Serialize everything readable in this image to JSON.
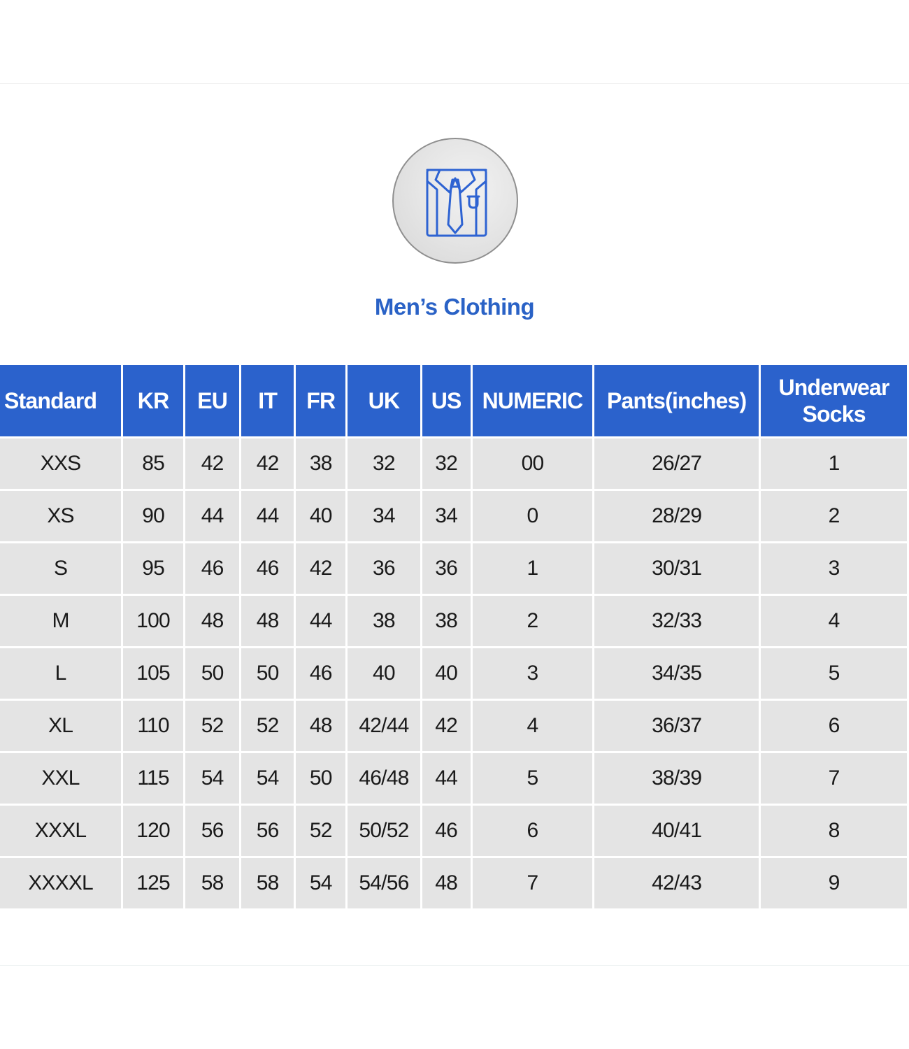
{
  "title": "Men’s Clothing",
  "icon": "shirt-tie-icon",
  "colors": {
    "accent": "#2b62cc",
    "title_text": "#2a62c6",
    "cell_background": "#e4e4e4"
  },
  "table": {
    "headers": [
      "Standard",
      "KR",
      "EU",
      "IT",
      "FR",
      "UK",
      "US",
      "NUMERIC",
      "Pants(inches)",
      [
        "Underwear",
        "Socks"
      ]
    ],
    "rows": [
      [
        "XXS",
        "85",
        "42",
        "42",
        "38",
        "32",
        "32",
        "00",
        "26/27",
        "1"
      ],
      [
        "XS",
        "90",
        "44",
        "44",
        "40",
        "34",
        "34",
        "0",
        "28/29",
        "2"
      ],
      [
        "S",
        "95",
        "46",
        "46",
        "42",
        "36",
        "36",
        "1",
        "30/31",
        "3"
      ],
      [
        "M",
        "100",
        "48",
        "48",
        "44",
        "38",
        "38",
        "2",
        "32/33",
        "4"
      ],
      [
        "L",
        "105",
        "50",
        "50",
        "46",
        "40",
        "40",
        "3",
        "34/35",
        "5"
      ],
      [
        "XL",
        "110",
        "52",
        "52",
        "48",
        "42/44",
        "42",
        "4",
        "36/37",
        "6"
      ],
      [
        "XXL",
        "115",
        "54",
        "54",
        "50",
        "46/48",
        "44",
        "5",
        "38/39",
        "7"
      ],
      [
        "XXXL",
        "120",
        "56",
        "56",
        "52",
        "50/52",
        "46",
        "6",
        "40/41",
        "8"
      ],
      [
        "XXXXL",
        "125",
        "58",
        "58",
        "54",
        "54/56",
        "48",
        "7",
        "42/43",
        "9"
      ]
    ]
  }
}
